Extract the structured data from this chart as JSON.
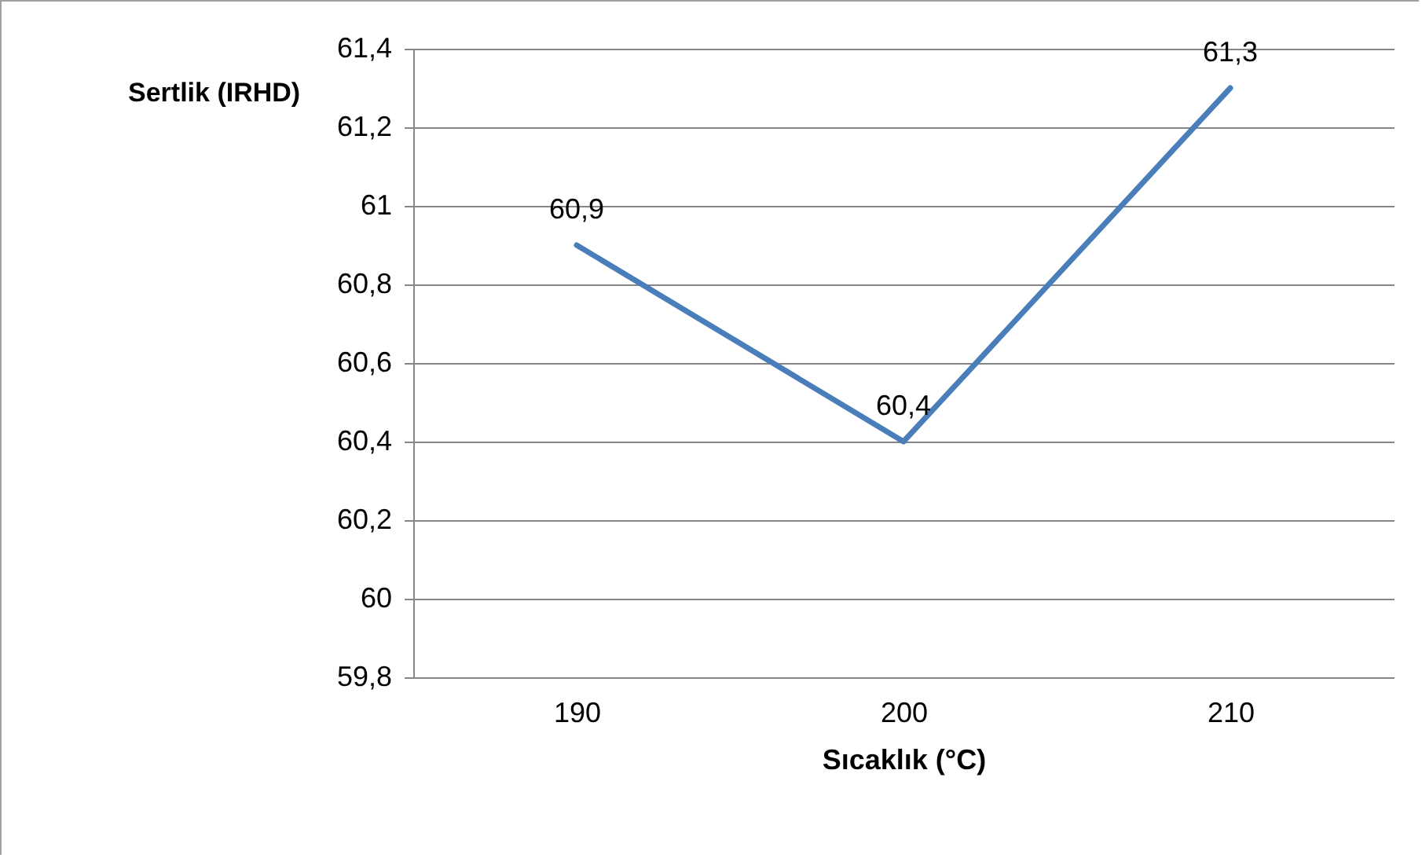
{
  "chart_data": {
    "type": "line",
    "xlabel": "Sıcaklık (°C)",
    "ylabel": "Sertlik (IRHD)",
    "categories": [
      "190",
      "200",
      "210"
    ],
    "series": [
      {
        "color": "#4a7ebb",
        "values": [
          60.9,
          60.4,
          61.3
        ],
        "value_labels": [
          "60,9",
          "60,4",
          "61,3"
        ]
      }
    ],
    "ylim": [
      59.8,
      61.4
    ],
    "yticks": [
      {
        "value": 59.8,
        "label": "59,8"
      },
      {
        "value": 60,
        "label": "60"
      },
      {
        "value": 60.2,
        "label": "60,2"
      },
      {
        "value": 60.4,
        "label": "60,4"
      },
      {
        "value": 60.6,
        "label": "60,6"
      },
      {
        "value": 60.8,
        "label": "60,8"
      },
      {
        "value": 61,
        "label": "61"
      },
      {
        "value": 61.2,
        "label": "61,2"
      },
      {
        "value": 61.4,
        "label": "61,4"
      }
    ],
    "grid": "y",
    "marker": "none",
    "line_style": "solid"
  }
}
